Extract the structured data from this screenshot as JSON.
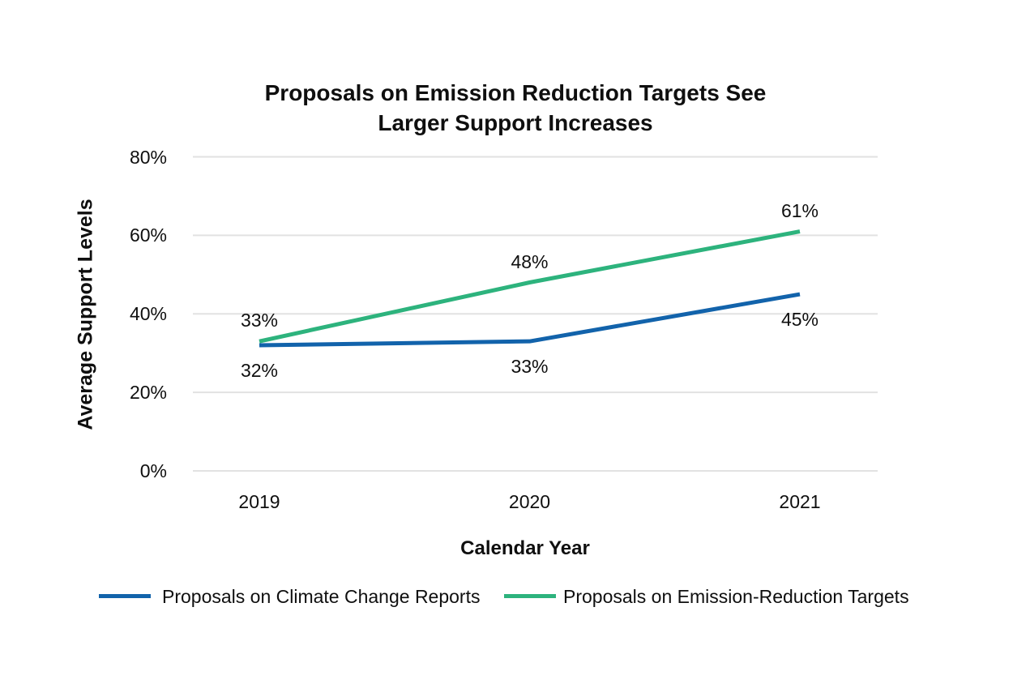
{
  "page": {
    "background_color": "#ffffff",
    "text_color": "#0f0f0f"
  },
  "chart_data": {
    "type": "line",
    "title": "Proposals on Emission Reduction Targets See Larger Support Increases",
    "title_lines": {
      "0": "Proposals on Emission Reduction Targets See",
      "1": "Larger Support Increases"
    },
    "xlabel": "Calendar Year",
    "ylabel": "Average Support Levels",
    "categories": [
      "2019",
      "2020",
      "2021"
    ],
    "series": [
      {
        "name": "Proposals on Climate Change Reports",
        "color": "#1263ab",
        "values": [
          32,
          33,
          45
        ],
        "point_labels": [
          "32%",
          "33%",
          "45%"
        ],
        "label_position": "below"
      },
      {
        "name": "Proposals on Emission-Reduction Targets",
        "color": "#2db37d",
        "values": [
          33,
          48,
          61
        ],
        "point_labels": [
          "33%",
          "48%",
          "61%"
        ],
        "label_position": "above"
      }
    ],
    "y_ticks": [
      {
        "label": "0%",
        "value": 0
      },
      {
        "label": "20%",
        "value": 20
      },
      {
        "label": "40%",
        "value": 40
      },
      {
        "label": "60%",
        "value": 60
      },
      {
        "label": "80%",
        "value": 80
      }
    ],
    "ylim": [
      0,
      80
    ],
    "grid": "horizontal",
    "gridline_color": "#e2e2e2",
    "legend_position": "bottom"
  }
}
